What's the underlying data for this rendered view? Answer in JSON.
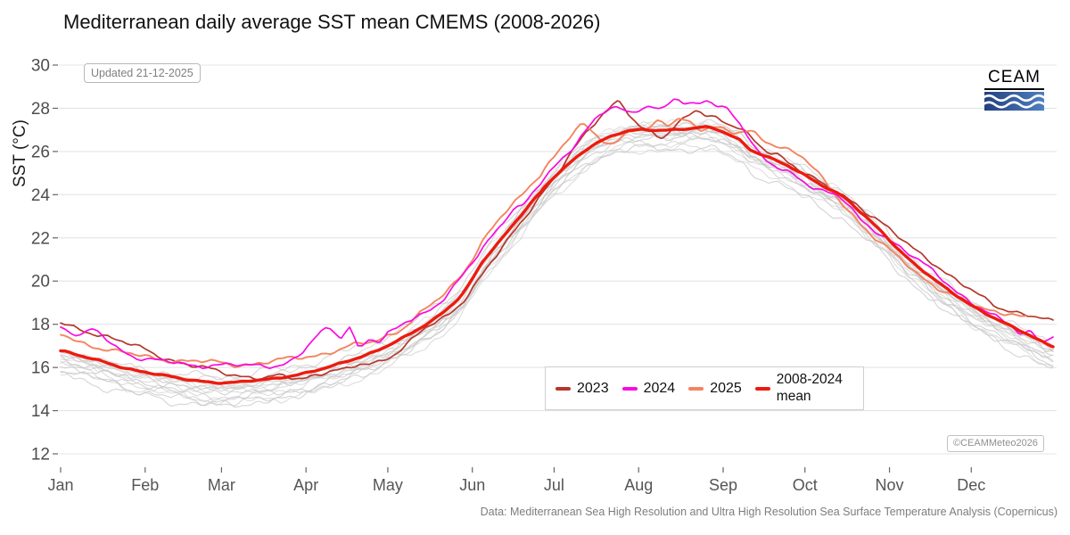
{
  "title": "Mediterranean daily average SST mean CMEMS (2008-2026)",
  "updated_label": "Updated 21-12-2025",
  "copyright_label": "©CEAMMeteo2026",
  "caption": "Data: Mediterranean Sea High Resolution and Ultra High Resolution Sea Surface Temperature Analysis (Copernicus)",
  "logo": {
    "text": "CEAM",
    "wave_color": "#ffffff",
    "box_color_left": "#24407e",
    "box_color_right": "#4f80c1"
  },
  "colors": {
    "grid": "#e4e4e4",
    "tick": "#666666",
    "tick_label": "#4d4d4d",
    "background_years": "#c8c8c8"
  },
  "chart_data": {
    "type": "line",
    "title": "Mediterranean daily average SST mean CMEMS (2008-2026)",
    "grid": "horizontal-only",
    "legend_position": "bottom-right-inside",
    "y_axis": {
      "label": "SST (°C)",
      "range": [
        12,
        30
      ],
      "ticks": [
        12,
        14,
        16,
        18,
        20,
        22,
        24,
        26,
        28,
        30
      ]
    },
    "x_axis": {
      "unit": "day-of-year",
      "range": [
        1,
        365
      ],
      "months": [
        {
          "label": "Jan",
          "day": 1
        },
        {
          "label": "Feb",
          "day": 32
        },
        {
          "label": "Mar",
          "day": 60
        },
        {
          "label": "Apr",
          "day": 91
        },
        {
          "label": "May",
          "day": 121
        },
        {
          "label": "Jun",
          "day": 152
        },
        {
          "label": "Jul",
          "day": 182
        },
        {
          "label": "Aug",
          "day": 213
        },
        {
          "label": "Sep",
          "day": 244
        },
        {
          "label": "Oct",
          "day": 274
        },
        {
          "label": "Nov",
          "day": 305
        },
        {
          "label": "Dec",
          "day": 335
        }
      ]
    },
    "background_years": {
      "years": "2008-2022 individual years",
      "color": "#c8c8c8",
      "count": 15,
      "approx_winter_range_c": [
        14.6,
        16.7
      ],
      "approx_summer_range_c": [
        25.8,
        28.0
      ]
    },
    "series": [
      {
        "key": "y2023",
        "label": "2023",
        "color": "#b5372c",
        "points": [
          [
            1,
            18.05
          ],
          [
            8,
            17.8
          ],
          [
            15,
            17.55
          ],
          [
            22,
            17.2
          ],
          [
            32,
            16.85
          ],
          [
            39,
            16.5
          ],
          [
            46,
            16.15
          ],
          [
            53,
            15.95
          ],
          [
            60,
            15.8
          ],
          [
            67,
            15.65
          ],
          [
            74,
            15.5
          ],
          [
            81,
            15.55
          ],
          [
            88,
            15.5
          ],
          [
            95,
            15.7
          ],
          [
            101,
            15.9
          ],
          [
            106,
            15.85
          ],
          [
            111,
            16.1
          ],
          [
            116,
            16.2
          ],
          [
            121,
            16.5
          ],
          [
            128,
            17.1
          ],
          [
            135,
            17.8
          ],
          [
            142,
            18.3
          ],
          [
            149,
            19.2
          ],
          [
            156,
            20.4
          ],
          [
            163,
            21.5
          ],
          [
            170,
            22.7
          ],
          [
            177,
            24.0
          ],
          [
            182,
            24.8
          ],
          [
            187,
            25.7
          ],
          [
            192,
            26.5
          ],
          [
            197,
            27.3
          ],
          [
            202,
            28.0
          ],
          [
            206,
            28.35
          ],
          [
            210,
            27.7
          ],
          [
            214,
            27.1
          ],
          [
            218,
            26.8
          ],
          [
            222,
            26.6
          ],
          [
            226,
            27.1
          ],
          [
            230,
            27.6
          ],
          [
            234,
            28.0
          ],
          [
            238,
            27.7
          ],
          [
            242,
            27.5
          ],
          [
            246,
            27.2
          ],
          [
            250,
            27.0
          ],
          [
            254,
            26.65
          ],
          [
            260,
            26.1
          ],
          [
            264,
            25.9
          ],
          [
            268,
            25.5
          ],
          [
            274,
            24.9
          ],
          [
            281,
            24.45
          ],
          [
            288,
            24.0
          ],
          [
            293,
            23.6
          ],
          [
            298,
            23.0
          ],
          [
            305,
            22.35
          ],
          [
            312,
            21.7
          ],
          [
            319,
            21.1
          ],
          [
            326,
            20.3
          ],
          [
            333,
            19.7
          ],
          [
            340,
            19.2
          ],
          [
            347,
            18.75
          ],
          [
            354,
            18.45
          ],
          [
            360,
            18.25
          ],
          [
            365,
            18.1
          ]
        ]
      },
      {
        "key": "y2024",
        "label": "2024",
        "color": "#f90be0",
        "points": [
          [
            1,
            17.95
          ],
          [
            5,
            17.6
          ],
          [
            9,
            17.45
          ],
          [
            13,
            17.7
          ],
          [
            18,
            17.3
          ],
          [
            22,
            16.9
          ],
          [
            29,
            16.5
          ],
          [
            36,
            16.3
          ],
          [
            43,
            16.2
          ],
          [
            50,
            16.1
          ],
          [
            57,
            16.15
          ],
          [
            64,
            16.1
          ],
          [
            71,
            16.05
          ],
          [
            78,
            16.1
          ],
          [
            85,
            16.3
          ],
          [
            90,
            16.75
          ],
          [
            95,
            17.4
          ],
          [
            100,
            17.75
          ],
          [
            104,
            17.4
          ],
          [
            107,
            17.95
          ],
          [
            110,
            17.0
          ],
          [
            114,
            17.35
          ],
          [
            118,
            17.2
          ],
          [
            121,
            17.5
          ],
          [
            128,
            18.1
          ],
          [
            135,
            18.6
          ],
          [
            142,
            19.3
          ],
          [
            149,
            20.3
          ],
          [
            156,
            21.5
          ],
          [
            163,
            22.7
          ],
          [
            167,
            23.4
          ],
          [
            171,
            23.6
          ],
          [
            177,
            24.5
          ],
          [
            182,
            25.2
          ],
          [
            187,
            25.9
          ],
          [
            192,
            26.8
          ],
          [
            197,
            27.5
          ],
          [
            201,
            27.9
          ],
          [
            205,
            28.0
          ],
          [
            209,
            27.7
          ],
          [
            213,
            27.9
          ],
          [
            217,
            28.15
          ],
          [
            221,
            28.0
          ],
          [
            226,
            28.5
          ],
          [
            230,
            28.2
          ],
          [
            234,
            28.1
          ],
          [
            238,
            28.3
          ],
          [
            242,
            28.1
          ],
          [
            246,
            27.95
          ],
          [
            250,
            27.4
          ],
          [
            253,
            26.8
          ],
          [
            256,
            26.1
          ],
          [
            260,
            25.5
          ],
          [
            264,
            25.2
          ],
          [
            268,
            25.0
          ],
          [
            274,
            24.6
          ],
          [
            281,
            24.2
          ],
          [
            288,
            23.75
          ],
          [
            295,
            22.7
          ],
          [
            302,
            22.2
          ],
          [
            309,
            21.6
          ],
          [
            316,
            20.9
          ],
          [
            323,
            20.2
          ],
          [
            330,
            19.5
          ],
          [
            337,
            18.9
          ],
          [
            344,
            18.3
          ],
          [
            349,
            17.95
          ],
          [
            353,
            17.55
          ],
          [
            357,
            17.65
          ],
          [
            361,
            17.3
          ],
          [
            365,
            17.5
          ]
        ]
      },
      {
        "key": "y2025",
        "label": "2025",
        "color": "#f4845f",
        "points": [
          [
            1,
            17.5
          ],
          [
            8,
            17.2
          ],
          [
            15,
            16.95
          ],
          [
            22,
            16.7
          ],
          [
            32,
            16.5
          ],
          [
            39,
            16.4
          ],
          [
            46,
            16.3
          ],
          [
            53,
            16.25
          ],
          [
            60,
            16.2
          ],
          [
            67,
            16.15
          ],
          [
            74,
            16.2
          ],
          [
            81,
            16.3
          ],
          [
            88,
            16.45
          ],
          [
            95,
            16.6
          ],
          [
            102,
            16.8
          ],
          [
            109,
            17.0
          ],
          [
            116,
            17.2
          ],
          [
            121,
            17.5
          ],
          [
            128,
            18.0
          ],
          [
            135,
            18.7
          ],
          [
            142,
            19.4
          ],
          [
            149,
            20.5
          ],
          [
            156,
            21.9
          ],
          [
            163,
            23.0
          ],
          [
            170,
            23.9
          ],
          [
            177,
            25.0
          ],
          [
            182,
            25.8
          ],
          [
            186,
            26.4
          ],
          [
            190,
            27.0
          ],
          [
            193,
            27.15
          ],
          [
            196,
            26.8
          ],
          [
            200,
            26.5
          ],
          [
            204,
            26.4
          ],
          [
            208,
            26.85
          ],
          [
            212,
            27.1
          ],
          [
            216,
            27.0
          ],
          [
            220,
            27.3
          ],
          [
            224,
            27.2
          ],
          [
            228,
            27.5
          ],
          [
            232,
            27.35
          ],
          [
            236,
            27.1
          ],
          [
            240,
            27.2
          ],
          [
            244,
            27.0
          ],
          [
            248,
            26.8
          ],
          [
            254,
            26.9
          ],
          [
            258,
            26.6
          ],
          [
            262,
            26.4
          ],
          [
            268,
            26.1
          ],
          [
            274,
            25.6
          ],
          [
            281,
            24.6
          ],
          [
            288,
            23.6
          ],
          [
            295,
            22.6
          ],
          [
            302,
            21.7
          ],
          [
            309,
            21.0
          ],
          [
            316,
            20.3
          ],
          [
            323,
            19.7
          ],
          [
            330,
            19.2
          ],
          [
            337,
            18.8
          ],
          [
            344,
            18.6
          ],
          [
            350,
            18.55
          ],
          [
            355,
            18.3
          ]
        ]
      },
      {
        "key": "mean",
        "label": "2008-2024 mean",
        "color": "#ec1b0e",
        "points": [
          [
            1,
            16.8
          ],
          [
            8,
            16.55
          ],
          [
            15,
            16.3
          ],
          [
            22,
            16.05
          ],
          [
            32,
            15.8
          ],
          [
            40,
            15.6
          ],
          [
            46,
            15.45
          ],
          [
            55,
            15.35
          ],
          [
            63,
            15.3
          ],
          [
            74,
            15.4
          ],
          [
            82,
            15.55
          ],
          [
            91,
            15.75
          ],
          [
            98,
            15.95
          ],
          [
            105,
            16.25
          ],
          [
            113,
            16.6
          ],
          [
            121,
            17.0
          ],
          [
            128,
            17.45
          ],
          [
            135,
            18.0
          ],
          [
            142,
            18.65
          ],
          [
            149,
            19.5
          ],
          [
            156,
            20.9
          ],
          [
            163,
            22.0
          ],
          [
            170,
            23.1
          ],
          [
            177,
            24.1
          ],
          [
            182,
            24.8
          ],
          [
            189,
            25.6
          ],
          [
            196,
            26.3
          ],
          [
            203,
            26.7
          ],
          [
            210,
            26.95
          ],
          [
            220,
            27.0
          ],
          [
            231,
            27.05
          ],
          [
            238,
            27.1
          ],
          [
            244,
            26.9
          ],
          [
            250,
            26.55
          ],
          [
            254,
            26.1
          ],
          [
            261,
            25.7
          ],
          [
            268,
            25.3
          ],
          [
            274,
            24.9
          ],
          [
            281,
            24.4
          ],
          [
            288,
            23.9
          ],
          [
            295,
            23.1
          ],
          [
            302,
            22.3
          ],
          [
            309,
            21.4
          ],
          [
            316,
            20.6
          ],
          [
            323,
            19.9
          ],
          [
            330,
            19.3
          ],
          [
            337,
            18.75
          ],
          [
            344,
            18.25
          ],
          [
            351,
            17.8
          ],
          [
            358,
            17.4
          ],
          [
            365,
            17.0
          ]
        ]
      }
    ]
  }
}
